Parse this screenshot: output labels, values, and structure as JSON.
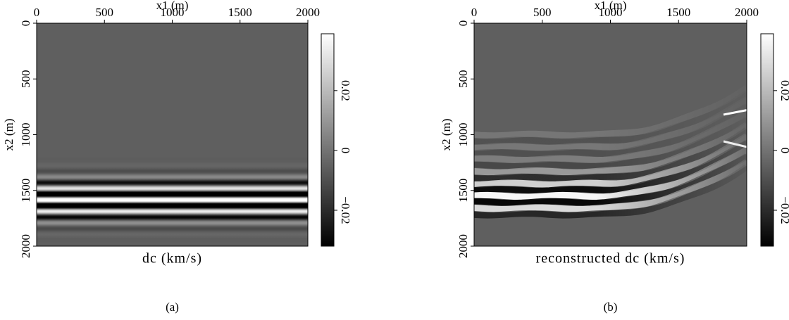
{
  "chart_data": [
    {
      "type": "image",
      "title": "dc (km/s)",
      "caption": "(a)",
      "xlabel": "x1 (m)",
      "ylabel": "x2 (m)",
      "xlim": [
        0,
        2000
      ],
      "xticks": [
        0,
        500,
        1000,
        1500,
        2000
      ],
      "ylim": [
        0,
        2000
      ],
      "yticks": [
        0,
        500,
        1000,
        1500,
        2000
      ],
      "clim": [
        -0.032,
        0.039
      ],
      "cticks": [
        {
          "value": -0.02,
          "label": "−0.02"
        },
        0,
        0.02
      ],
      "colormap": "gray"
    },
    {
      "type": "image",
      "title": "reconstructed dc (km/s)",
      "caption": "(b)",
      "xlabel": "x1 (m)",
      "ylabel": "x2 (m)",
      "xlim": [
        0,
        2000
      ],
      "xticks": [
        0,
        500,
        1000,
        1500,
        2000
      ],
      "ylim": [
        0,
        2000
      ],
      "yticks": [
        0,
        500,
        1000,
        1500,
        2000
      ],
      "clim": [
        -0.032,
        0.039
      ],
      "cticks": [
        {
          "value": -0.02,
          "label": "−0.02"
        },
        0,
        0.02
      ],
      "colormap": "gray"
    }
  ]
}
